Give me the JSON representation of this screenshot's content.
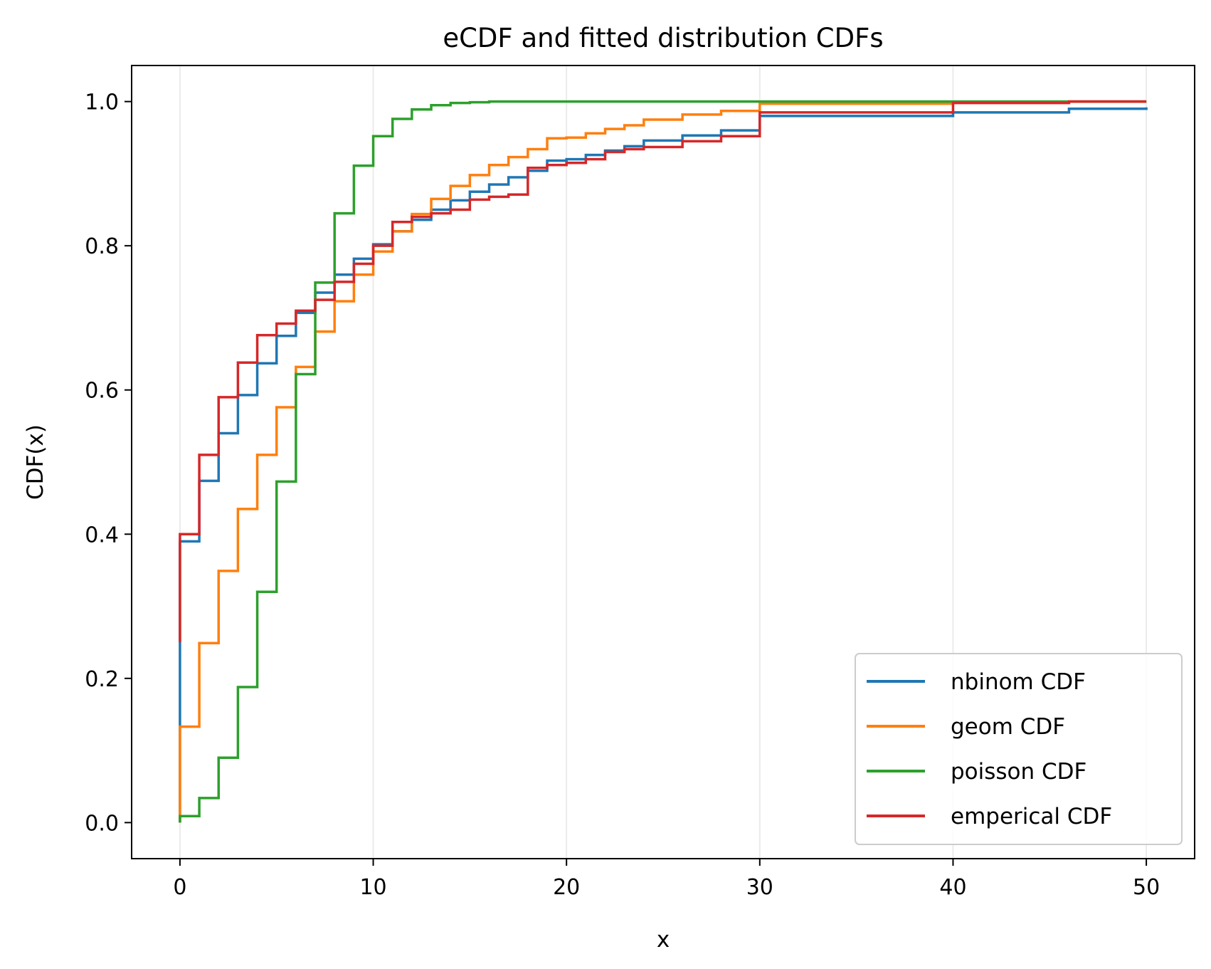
{
  "chart_data": {
    "type": "line",
    "title": "eCDF and fitted distribution CDFs",
    "xlabel": "x",
    "ylabel": "CDF(x)",
    "xlim": [
      -2.5,
      52.5
    ],
    "ylim": [
      -0.05,
      1.05
    ],
    "xticks": [
      0,
      10,
      20,
      30,
      40,
      50
    ],
    "yticks": [
      0.0,
      0.2,
      0.4,
      0.6,
      0.8,
      1.0
    ],
    "xtick_labels": [
      "0",
      "10",
      "20",
      "30",
      "40",
      "50"
    ],
    "ytick_labels": [
      "0.0",
      "0.2",
      "0.4",
      "0.6",
      "0.8",
      "1.0"
    ],
    "grid": "x-axis only (light vertical lines)",
    "legend_position": "lower right",
    "step": "post",
    "series": [
      {
        "name": "nbinom CDF",
        "color": "#1f77b4",
        "x": [
          0,
          1,
          2,
          3,
          4,
          5,
          6,
          7,
          8,
          9,
          10,
          11,
          12,
          13,
          14,
          15,
          16,
          17,
          18,
          19,
          20,
          21,
          22,
          23,
          24,
          26,
          28,
          30,
          40,
          46,
          50
        ],
        "y": [
          0.39,
          0.474,
          0.54,
          0.593,
          0.637,
          0.675,
          0.707,
          0.735,
          0.76,
          0.782,
          0.802,
          0.82,
          0.836,
          0.85,
          0.863,
          0.875,
          0.885,
          0.895,
          0.904,
          0.918,
          0.92,
          0.926,
          0.932,
          0.938,
          0.946,
          0.953,
          0.96,
          0.98,
          0.985,
          0.99,
          0.992
        ]
      },
      {
        "name": "geom CDF",
        "color": "#ff7f0e",
        "x": [
          0,
          1,
          2,
          3,
          4,
          5,
          6,
          7,
          8,
          9,
          10,
          11,
          12,
          13,
          14,
          15,
          16,
          17,
          18,
          19,
          20,
          21,
          22,
          23,
          24,
          26,
          28,
          30,
          40,
          46,
          50
        ],
        "y": [
          0.133,
          0.249,
          0.349,
          0.435,
          0.51,
          0.576,
          0.632,
          0.681,
          0.723,
          0.76,
          0.792,
          0.82,
          0.844,
          0.865,
          0.883,
          0.898,
          0.912,
          0.923,
          0.934,
          0.949,
          0.95,
          0.956,
          0.962,
          0.967,
          0.975,
          0.982,
          0.987,
          0.997,
          0.999,
          1.0,
          1.0
        ]
      },
      {
        "name": "poisson CDF",
        "color": "#2ca02c",
        "x": [
          0,
          1,
          2,
          3,
          4,
          5,
          6,
          7,
          8,
          9,
          10,
          11,
          12,
          13,
          14,
          15,
          16,
          17,
          18,
          19,
          20,
          21,
          22,
          23,
          24,
          26,
          28,
          30,
          40,
          46,
          50
        ],
        "y": [
          0.009,
          0.034,
          0.09,
          0.188,
          0.32,
          0.473,
          0.622,
          0.749,
          0.845,
          0.911,
          0.952,
          0.976,
          0.989,
          0.995,
          0.998,
          0.999,
          1.0,
          1.0,
          1.0,
          1.0,
          1.0,
          1.0,
          1.0,
          1.0,
          1.0,
          1.0,
          1.0,
          1.0,
          1.0,
          1.0,
          1.0
        ]
      },
      {
        "name": "emperical CDF",
        "color": "#d62728",
        "x": [
          0,
          1,
          2,
          3,
          4,
          5,
          6,
          7,
          8,
          9,
          10,
          11,
          12,
          13,
          14,
          15,
          16,
          17,
          18,
          19,
          20,
          21,
          22,
          23,
          24,
          26,
          28,
          30,
          40,
          46,
          50
        ],
        "y": [
          0.4,
          0.51,
          0.59,
          0.638,
          0.676,
          0.692,
          0.71,
          0.725,
          0.75,
          0.775,
          0.8,
          0.833,
          0.84,
          0.845,
          0.85,
          0.864,
          0.868,
          0.871,
          0.908,
          0.912,
          0.915,
          0.92,
          0.93,
          0.934,
          0.937,
          0.945,
          0.952,
          0.985,
          0.998,
          1.0,
          1.0
        ]
      }
    ]
  }
}
